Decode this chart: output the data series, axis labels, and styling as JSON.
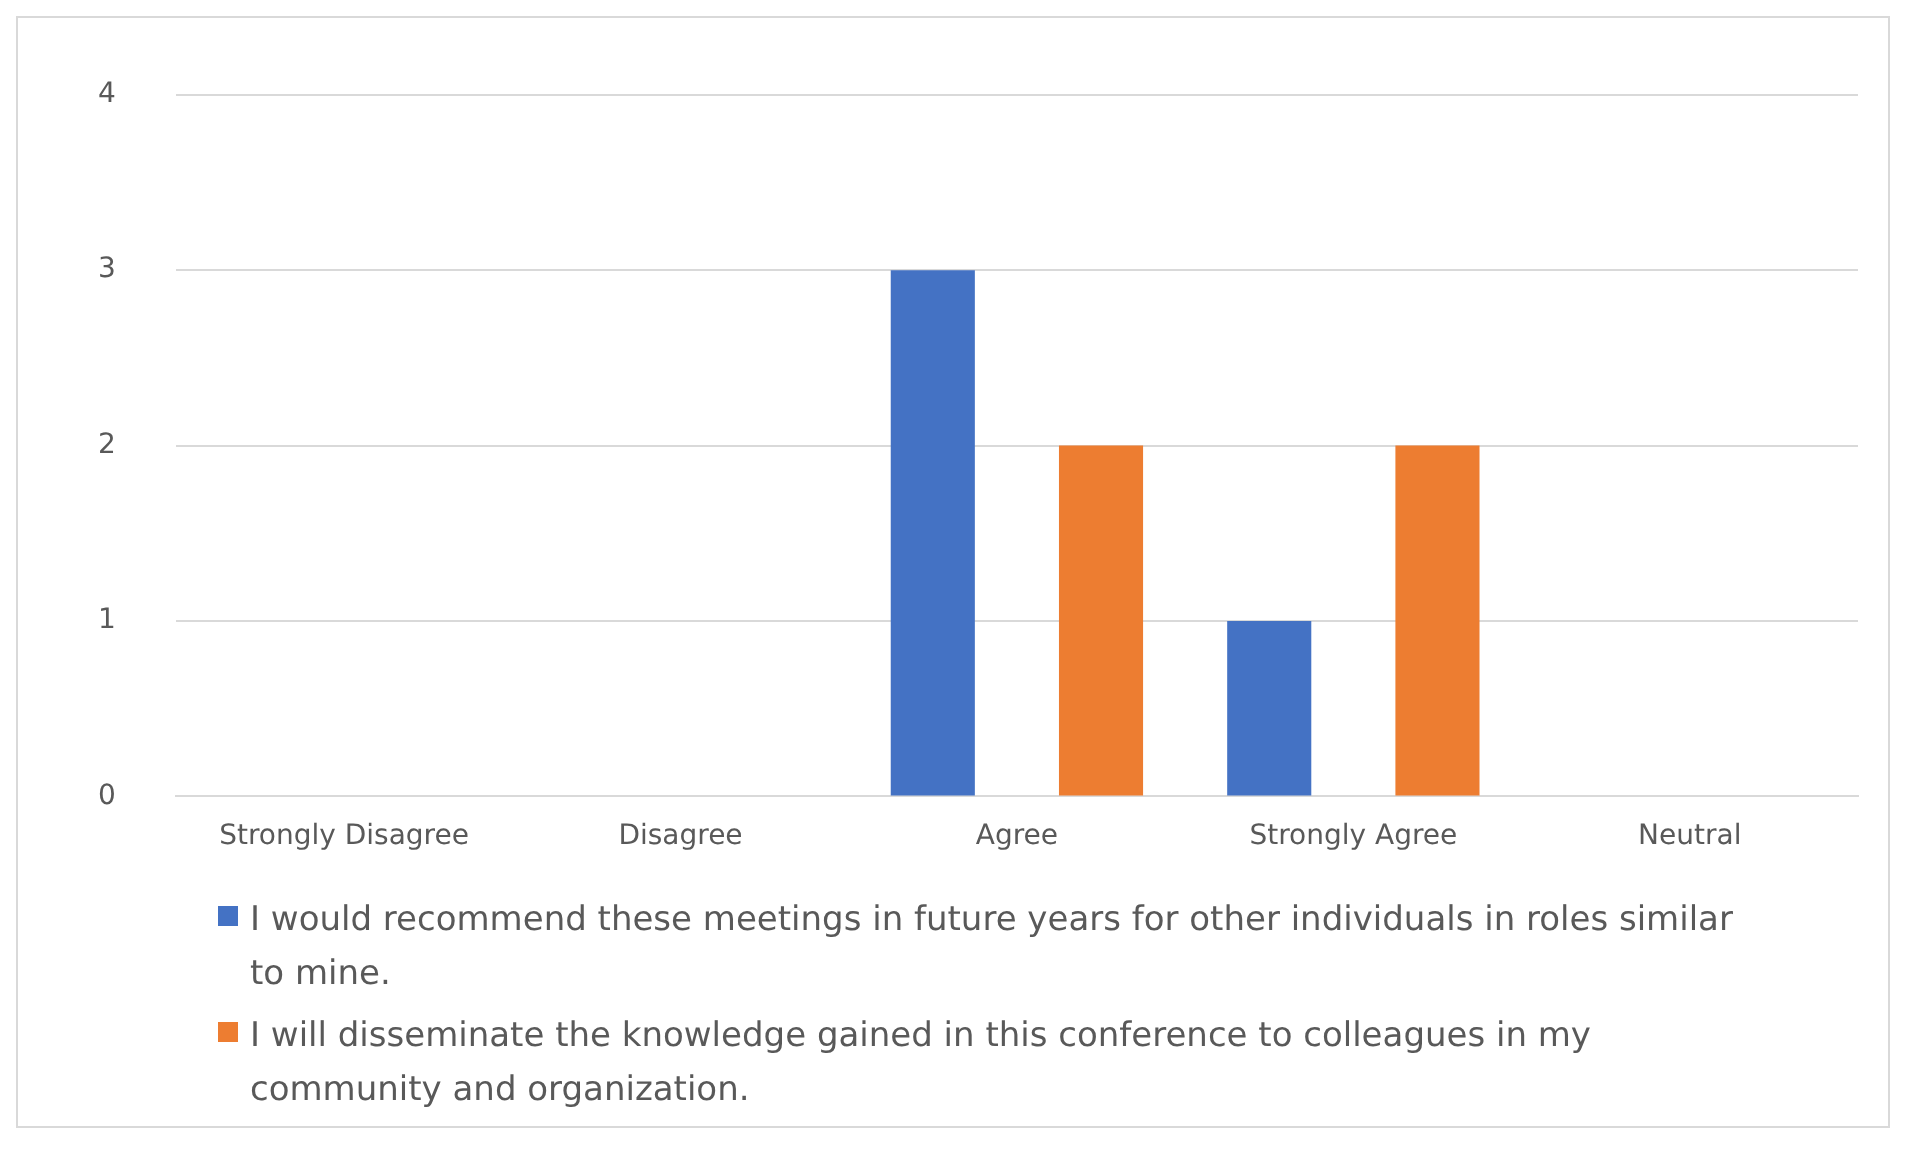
{
  "chart_data": {
    "type": "bar",
    "categories": [
      "Strongly Disagree",
      "Disagree",
      "Agree",
      "Strongly Agree",
      "Neutral"
    ],
    "series": [
      {
        "name": "I would recommend these meetings in future years for other individuals in roles similar to mine.",
        "color": "#4472c4",
        "values": [
          0,
          0,
          3,
          1,
          0
        ]
      },
      {
        "name": "I will disseminate the knowledge gained in this conference to colleagues in my community and organization.",
        "color": "#ed7d31",
        "values": [
          0,
          0,
          2,
          2,
          0
        ]
      }
    ],
    "ylim": [
      0,
      4
    ],
    "yticks": [
      0,
      1,
      2,
      3,
      4
    ],
    "grid": "y",
    "legend": "bottom"
  }
}
